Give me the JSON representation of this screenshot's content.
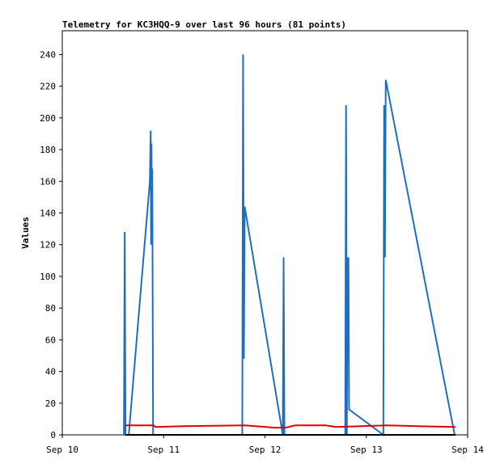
{
  "chart_data": {
    "type": "line",
    "title": "Telemetry for KC3HQQ-9 over last 96 hours (81 points)",
    "y_label": "Values",
    "xlim": [
      10,
      14
    ],
    "ylim": [
      0,
      255
    ],
    "xticks": [
      {
        "value": 10,
        "label": "Sep 10"
      },
      {
        "value": 11,
        "label": "Sep 11"
      },
      {
        "value": 12,
        "label": "Sep 12"
      },
      {
        "value": 13,
        "label": "Sep 13"
      },
      {
        "value": 14,
        "label": "Sep 14"
      }
    ],
    "yticks": [
      0,
      20,
      40,
      60,
      80,
      100,
      120,
      140,
      160,
      180,
      200,
      220,
      240
    ],
    "series": [
      {
        "name": "blue",
        "color": "#1f6fc0",
        "x": [
          10.608,
          10.616,
          10.624,
          10.656,
          10.864,
          10.872,
          10.876,
          10.88,
          10.884,
          10.888,
          10.896,
          11.776,
          11.784,
          11.792,
          11.8,
          12.176,
          12.184,
          12.192,
          12.792,
          12.8,
          12.808,
          12.816,
          12.82,
          12.824,
          12.83,
          13.168,
          13.176,
          13.184,
          13.192,
          13.872
        ],
        "values": [
          0,
          128,
          0,
          0,
          160,
          192,
          120,
          184,
          150,
          168,
          0,
          0,
          240,
          48,
          144,
          0,
          112,
          0,
          0,
          208,
          0,
          112,
          64,
          112,
          16,
          0,
          208,
          112,
          224,
          0
        ]
      },
      {
        "name": "red",
        "color": "#e00000",
        "x": [
          10.62,
          10.9,
          10.92,
          11.2,
          11.8,
          12.1,
          12.2,
          12.3,
          12.6,
          12.7,
          13.2,
          13.5,
          13.88
        ],
        "values": [
          6,
          6,
          5,
          5.5,
          6,
          4.5,
          4.5,
          6,
          6,
          5,
          6,
          5.5,
          5
        ]
      },
      {
        "name": "black",
        "color": "#000000",
        "x": [
          10.62,
          13.88
        ],
        "values": [
          0,
          0
        ]
      }
    ]
  }
}
